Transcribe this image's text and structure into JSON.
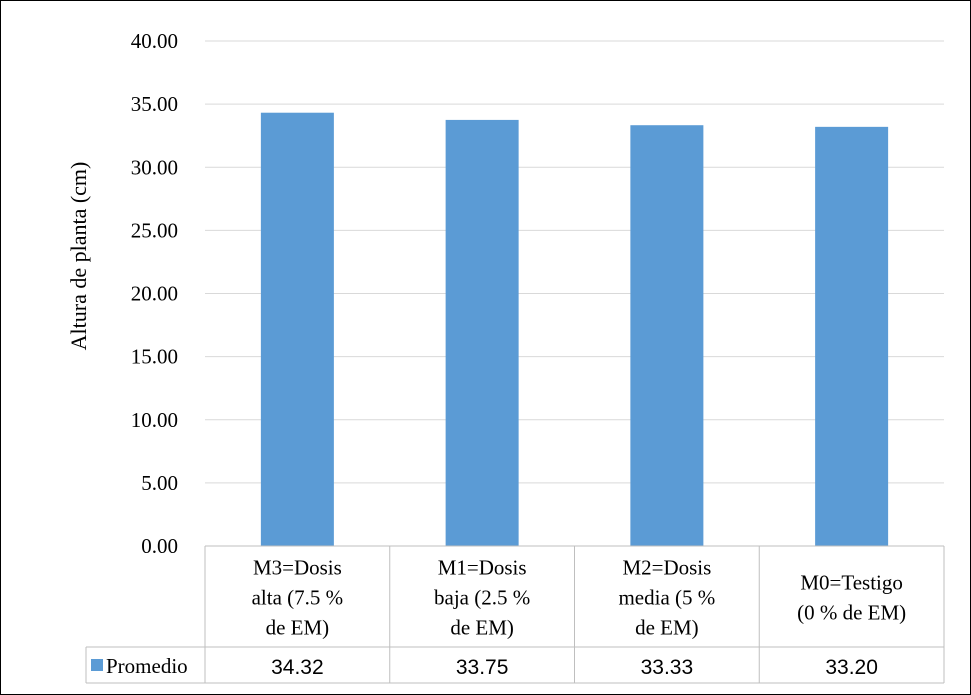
{
  "chart_data": {
    "type": "bar",
    "ylabel": "Altura de planta (cm)",
    "ylim": [
      0,
      40
    ],
    "ytick_step": 5,
    "ytick_labels": [
      "0.00",
      "5.00",
      "10.00",
      "15.00",
      "20.00",
      "25.00",
      "30.00",
      "35.00",
      "40.00"
    ],
    "grid": true,
    "categories": [
      [
        "M3=Dosis",
        "alta (7.5 %",
        "de EM)"
      ],
      [
        "M1=Dosis",
        "baja (2.5 %",
        "de EM)"
      ],
      [
        "M2=Dosis",
        "media (5 %",
        "de EM)"
      ],
      [
        "M0=Testigo",
        "(0 % de EM)"
      ]
    ],
    "series": [
      {
        "name": "Promedio",
        "color": "#5b9bd5",
        "values": [
          34.32,
          33.75,
          33.33,
          33.2
        ],
        "value_labels": [
          "34.32",
          "33.75",
          "33.33",
          "33.20"
        ]
      }
    ],
    "data_table": true
  }
}
